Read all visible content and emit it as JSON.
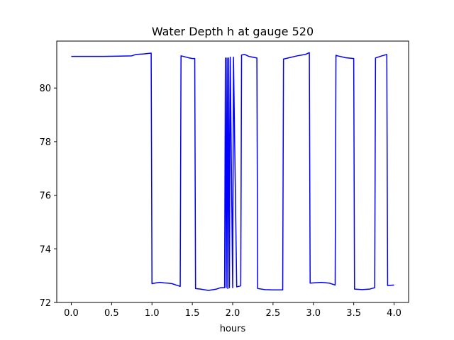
{
  "chart_data": {
    "type": "line",
    "title": "Water Depth h at gauge 520",
    "xlabel": "hours",
    "ylabel": "",
    "xlim": [
      -0.18,
      4.18
    ],
    "ylim": [
      72,
      81.75
    ],
    "xticks": [
      "0.0",
      "0.5",
      "1.0",
      "1.5",
      "2.0",
      "2.5",
      "3.0",
      "3.5",
      "4.0"
    ],
    "yticks": [
      "72",
      "74",
      "76",
      "78",
      "80"
    ],
    "grid": false,
    "series": [
      {
        "color": "#0000ff",
        "x": [
          0.0,
          0.2,
          0.4,
          0.6,
          0.75,
          0.8,
          0.9,
          0.99,
          1.0,
          1.05,
          1.1,
          1.15,
          1.2,
          1.25,
          1.3,
          1.35,
          1.36,
          1.4,
          1.45,
          1.5,
          1.53,
          1.54,
          1.6,
          1.7,
          1.8,
          1.85,
          1.9,
          1.91,
          1.92,
          1.93,
          1.94,
          1.95,
          1.96,
          1.97,
          2.0,
          2.01,
          2.05,
          2.1,
          2.11,
          2.15,
          2.2,
          2.25,
          2.3,
          2.31,
          2.4,
          2.5,
          2.6,
          2.62,
          2.63,
          2.7,
          2.8,
          2.9,
          2.95,
          2.96,
          3.0,
          3.1,
          3.2,
          3.27,
          3.28,
          3.3,
          3.4,
          3.5,
          3.51,
          3.6,
          3.7,
          3.76,
          3.77,
          3.85,
          3.91,
          3.92,
          4.0
        ],
        "y": [
          81.18,
          81.18,
          81.18,
          81.19,
          81.2,
          81.25,
          81.27,
          81.3,
          72.7,
          72.73,
          72.75,
          72.73,
          72.72,
          72.7,
          72.65,
          72.6,
          81.2,
          81.17,
          81.13,
          81.1,
          81.1,
          72.52,
          72.5,
          72.45,
          72.5,
          72.55,
          72.55,
          81.12,
          72.55,
          81.12,
          72.52,
          81.12,
          72.55,
          81.15,
          72.55,
          81.15,
          72.58,
          72.62,
          81.23,
          81.25,
          81.18,
          81.15,
          81.12,
          72.52,
          72.48,
          72.47,
          72.47,
          72.47,
          81.08,
          81.13,
          81.2,
          81.25,
          81.32,
          72.72,
          72.73,
          72.75,
          72.72,
          72.65,
          81.22,
          81.2,
          81.13,
          81.1,
          72.5,
          72.48,
          72.5,
          72.55,
          81.12,
          81.2,
          81.25,
          72.63,
          72.65
        ]
      }
    ]
  }
}
